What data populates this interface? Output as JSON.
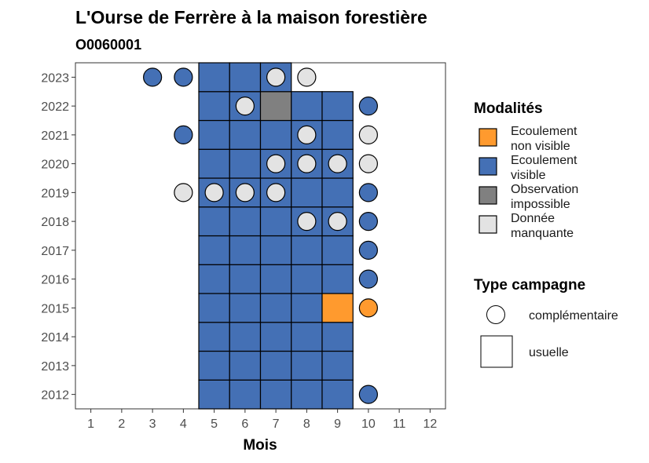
{
  "chart_data": {
    "type": "heatmap",
    "title": "L'Ourse de Ferrère à la maison forestière",
    "subtitle": "O0060001",
    "xlabel": "Mois",
    "ylabel": "",
    "x_ticks": [
      "1",
      "2",
      "3",
      "4",
      "5",
      "6",
      "7",
      "8",
      "9",
      "10",
      "11",
      "12"
    ],
    "y_ticks": [
      "2012",
      "2013",
      "2014",
      "2015",
      "2016",
      "2017",
      "2018",
      "2019",
      "2020",
      "2021",
      "2022",
      "2023"
    ],
    "xlim": [
      0.5,
      12.5
    ],
    "ylim": [
      2011.5,
      2023.5
    ],
    "legend_modalites": {
      "title": "Modalités",
      "items": [
        {
          "key": "ENV",
          "line1": "Ecoulement",
          "line2": "non visible",
          "color": "#FF9A2E"
        },
        {
          "key": "EV",
          "line1": "Ecoulement",
          "line2": "visible",
          "color": "#4470B5"
        },
        {
          "key": "OI",
          "line1": "Observation",
          "line2": "impossible",
          "color": "#808080"
        },
        {
          "key": "DM",
          "line1": "Donnée",
          "line2": "manquante",
          "color": "#E3E3E3"
        }
      ]
    },
    "legend_type": {
      "title": "Type campagne",
      "items": [
        {
          "key": "complementaire",
          "label": "complémentaire",
          "shape": "circle"
        },
        {
          "key": "usuelle",
          "label": "usuelle",
          "shape": "square"
        }
      ]
    },
    "usuelle": [
      {
        "year": 2012,
        "month": 5,
        "state": "EV"
      },
      {
        "year": 2012,
        "month": 6,
        "state": "EV"
      },
      {
        "year": 2012,
        "month": 7,
        "state": "EV"
      },
      {
        "year": 2012,
        "month": 8,
        "state": "EV"
      },
      {
        "year": 2012,
        "month": 9,
        "state": "EV"
      },
      {
        "year": 2013,
        "month": 5,
        "state": "EV"
      },
      {
        "year": 2013,
        "month": 6,
        "state": "EV"
      },
      {
        "year": 2013,
        "month": 7,
        "state": "EV"
      },
      {
        "year": 2013,
        "month": 8,
        "state": "EV"
      },
      {
        "year": 2013,
        "month": 9,
        "state": "EV"
      },
      {
        "year": 2014,
        "month": 5,
        "state": "EV"
      },
      {
        "year": 2014,
        "month": 6,
        "state": "EV"
      },
      {
        "year": 2014,
        "month": 7,
        "state": "EV"
      },
      {
        "year": 2014,
        "month": 8,
        "state": "EV"
      },
      {
        "year": 2014,
        "month": 9,
        "state": "EV"
      },
      {
        "year": 2015,
        "month": 5,
        "state": "EV"
      },
      {
        "year": 2015,
        "month": 6,
        "state": "EV"
      },
      {
        "year": 2015,
        "month": 7,
        "state": "EV"
      },
      {
        "year": 2015,
        "month": 8,
        "state": "EV"
      },
      {
        "year": 2015,
        "month": 9,
        "state": "ENV"
      },
      {
        "year": 2016,
        "month": 5,
        "state": "EV"
      },
      {
        "year": 2016,
        "month": 6,
        "state": "EV"
      },
      {
        "year": 2016,
        "month": 7,
        "state": "EV"
      },
      {
        "year": 2016,
        "month": 8,
        "state": "EV"
      },
      {
        "year": 2016,
        "month": 9,
        "state": "EV"
      },
      {
        "year": 2017,
        "month": 5,
        "state": "EV"
      },
      {
        "year": 2017,
        "month": 6,
        "state": "EV"
      },
      {
        "year": 2017,
        "month": 7,
        "state": "EV"
      },
      {
        "year": 2017,
        "month": 8,
        "state": "EV"
      },
      {
        "year": 2017,
        "month": 9,
        "state": "EV"
      },
      {
        "year": 2018,
        "month": 5,
        "state": "EV"
      },
      {
        "year": 2018,
        "month": 6,
        "state": "EV"
      },
      {
        "year": 2018,
        "month": 7,
        "state": "EV"
      },
      {
        "year": 2018,
        "month": 8,
        "state": "EV"
      },
      {
        "year": 2018,
        "month": 9,
        "state": "EV"
      },
      {
        "year": 2019,
        "month": 5,
        "state": "EV"
      },
      {
        "year": 2019,
        "month": 6,
        "state": "EV"
      },
      {
        "year": 2019,
        "month": 7,
        "state": "EV"
      },
      {
        "year": 2019,
        "month": 8,
        "state": "EV"
      },
      {
        "year": 2019,
        "month": 9,
        "state": "EV"
      },
      {
        "year": 2020,
        "month": 5,
        "state": "EV"
      },
      {
        "year": 2020,
        "month": 6,
        "state": "EV"
      },
      {
        "year": 2020,
        "month": 7,
        "state": "EV"
      },
      {
        "year": 2020,
        "month": 8,
        "state": "EV"
      },
      {
        "year": 2020,
        "month": 9,
        "state": "EV"
      },
      {
        "year": 2021,
        "month": 5,
        "state": "EV"
      },
      {
        "year": 2021,
        "month": 6,
        "state": "EV"
      },
      {
        "year": 2021,
        "month": 7,
        "state": "EV"
      },
      {
        "year": 2021,
        "month": 8,
        "state": "EV"
      },
      {
        "year": 2021,
        "month": 9,
        "state": "EV"
      },
      {
        "year": 2022,
        "month": 5,
        "state": "EV"
      },
      {
        "year": 2022,
        "month": 6,
        "state": "EV"
      },
      {
        "year": 2022,
        "month": 7,
        "state": "OI"
      },
      {
        "year": 2022,
        "month": 8,
        "state": "EV"
      },
      {
        "year": 2022,
        "month": 9,
        "state": "EV"
      },
      {
        "year": 2023,
        "month": 5,
        "state": "EV"
      },
      {
        "year": 2023,
        "month": 6,
        "state": "EV"
      },
      {
        "year": 2023,
        "month": 7,
        "state": "EV"
      }
    ],
    "complementaire": [
      {
        "year": 2012,
        "month": 10,
        "state": "EV"
      },
      {
        "year": 2015,
        "month": 10,
        "state": "ENV"
      },
      {
        "year": 2016,
        "month": 10,
        "state": "EV"
      },
      {
        "year": 2017,
        "month": 10,
        "state": "EV"
      },
      {
        "year": 2018,
        "month": 8,
        "state": "DM"
      },
      {
        "year": 2018,
        "month": 9,
        "state": "DM"
      },
      {
        "year": 2018,
        "month": 10,
        "state": "EV"
      },
      {
        "year": 2019,
        "month": 4,
        "state": "DM"
      },
      {
        "year": 2019,
        "month": 5,
        "state": "DM"
      },
      {
        "year": 2019,
        "month": 6,
        "state": "DM"
      },
      {
        "year": 2019,
        "month": 7,
        "state": "DM"
      },
      {
        "year": 2019,
        "month": 10,
        "state": "EV"
      },
      {
        "year": 2020,
        "month": 7,
        "state": "DM"
      },
      {
        "year": 2020,
        "month": 8,
        "state": "DM"
      },
      {
        "year": 2020,
        "month": 9,
        "state": "DM"
      },
      {
        "year": 2020,
        "month": 10,
        "state": "DM"
      },
      {
        "year": 2021,
        "month": 4,
        "state": "EV"
      },
      {
        "year": 2021,
        "month": 8,
        "state": "DM"
      },
      {
        "year": 2021,
        "month": 10,
        "state": "DM"
      },
      {
        "year": 2022,
        "month": 6,
        "state": "DM"
      },
      {
        "year": 2022,
        "month": 10,
        "state": "EV"
      },
      {
        "year": 2023,
        "month": 3,
        "state": "EV"
      },
      {
        "year": 2023,
        "month": 4,
        "state": "EV"
      },
      {
        "year": 2023,
        "month": 7,
        "state": "DM"
      },
      {
        "year": 2023,
        "month": 8,
        "state": "DM"
      }
    ]
  }
}
